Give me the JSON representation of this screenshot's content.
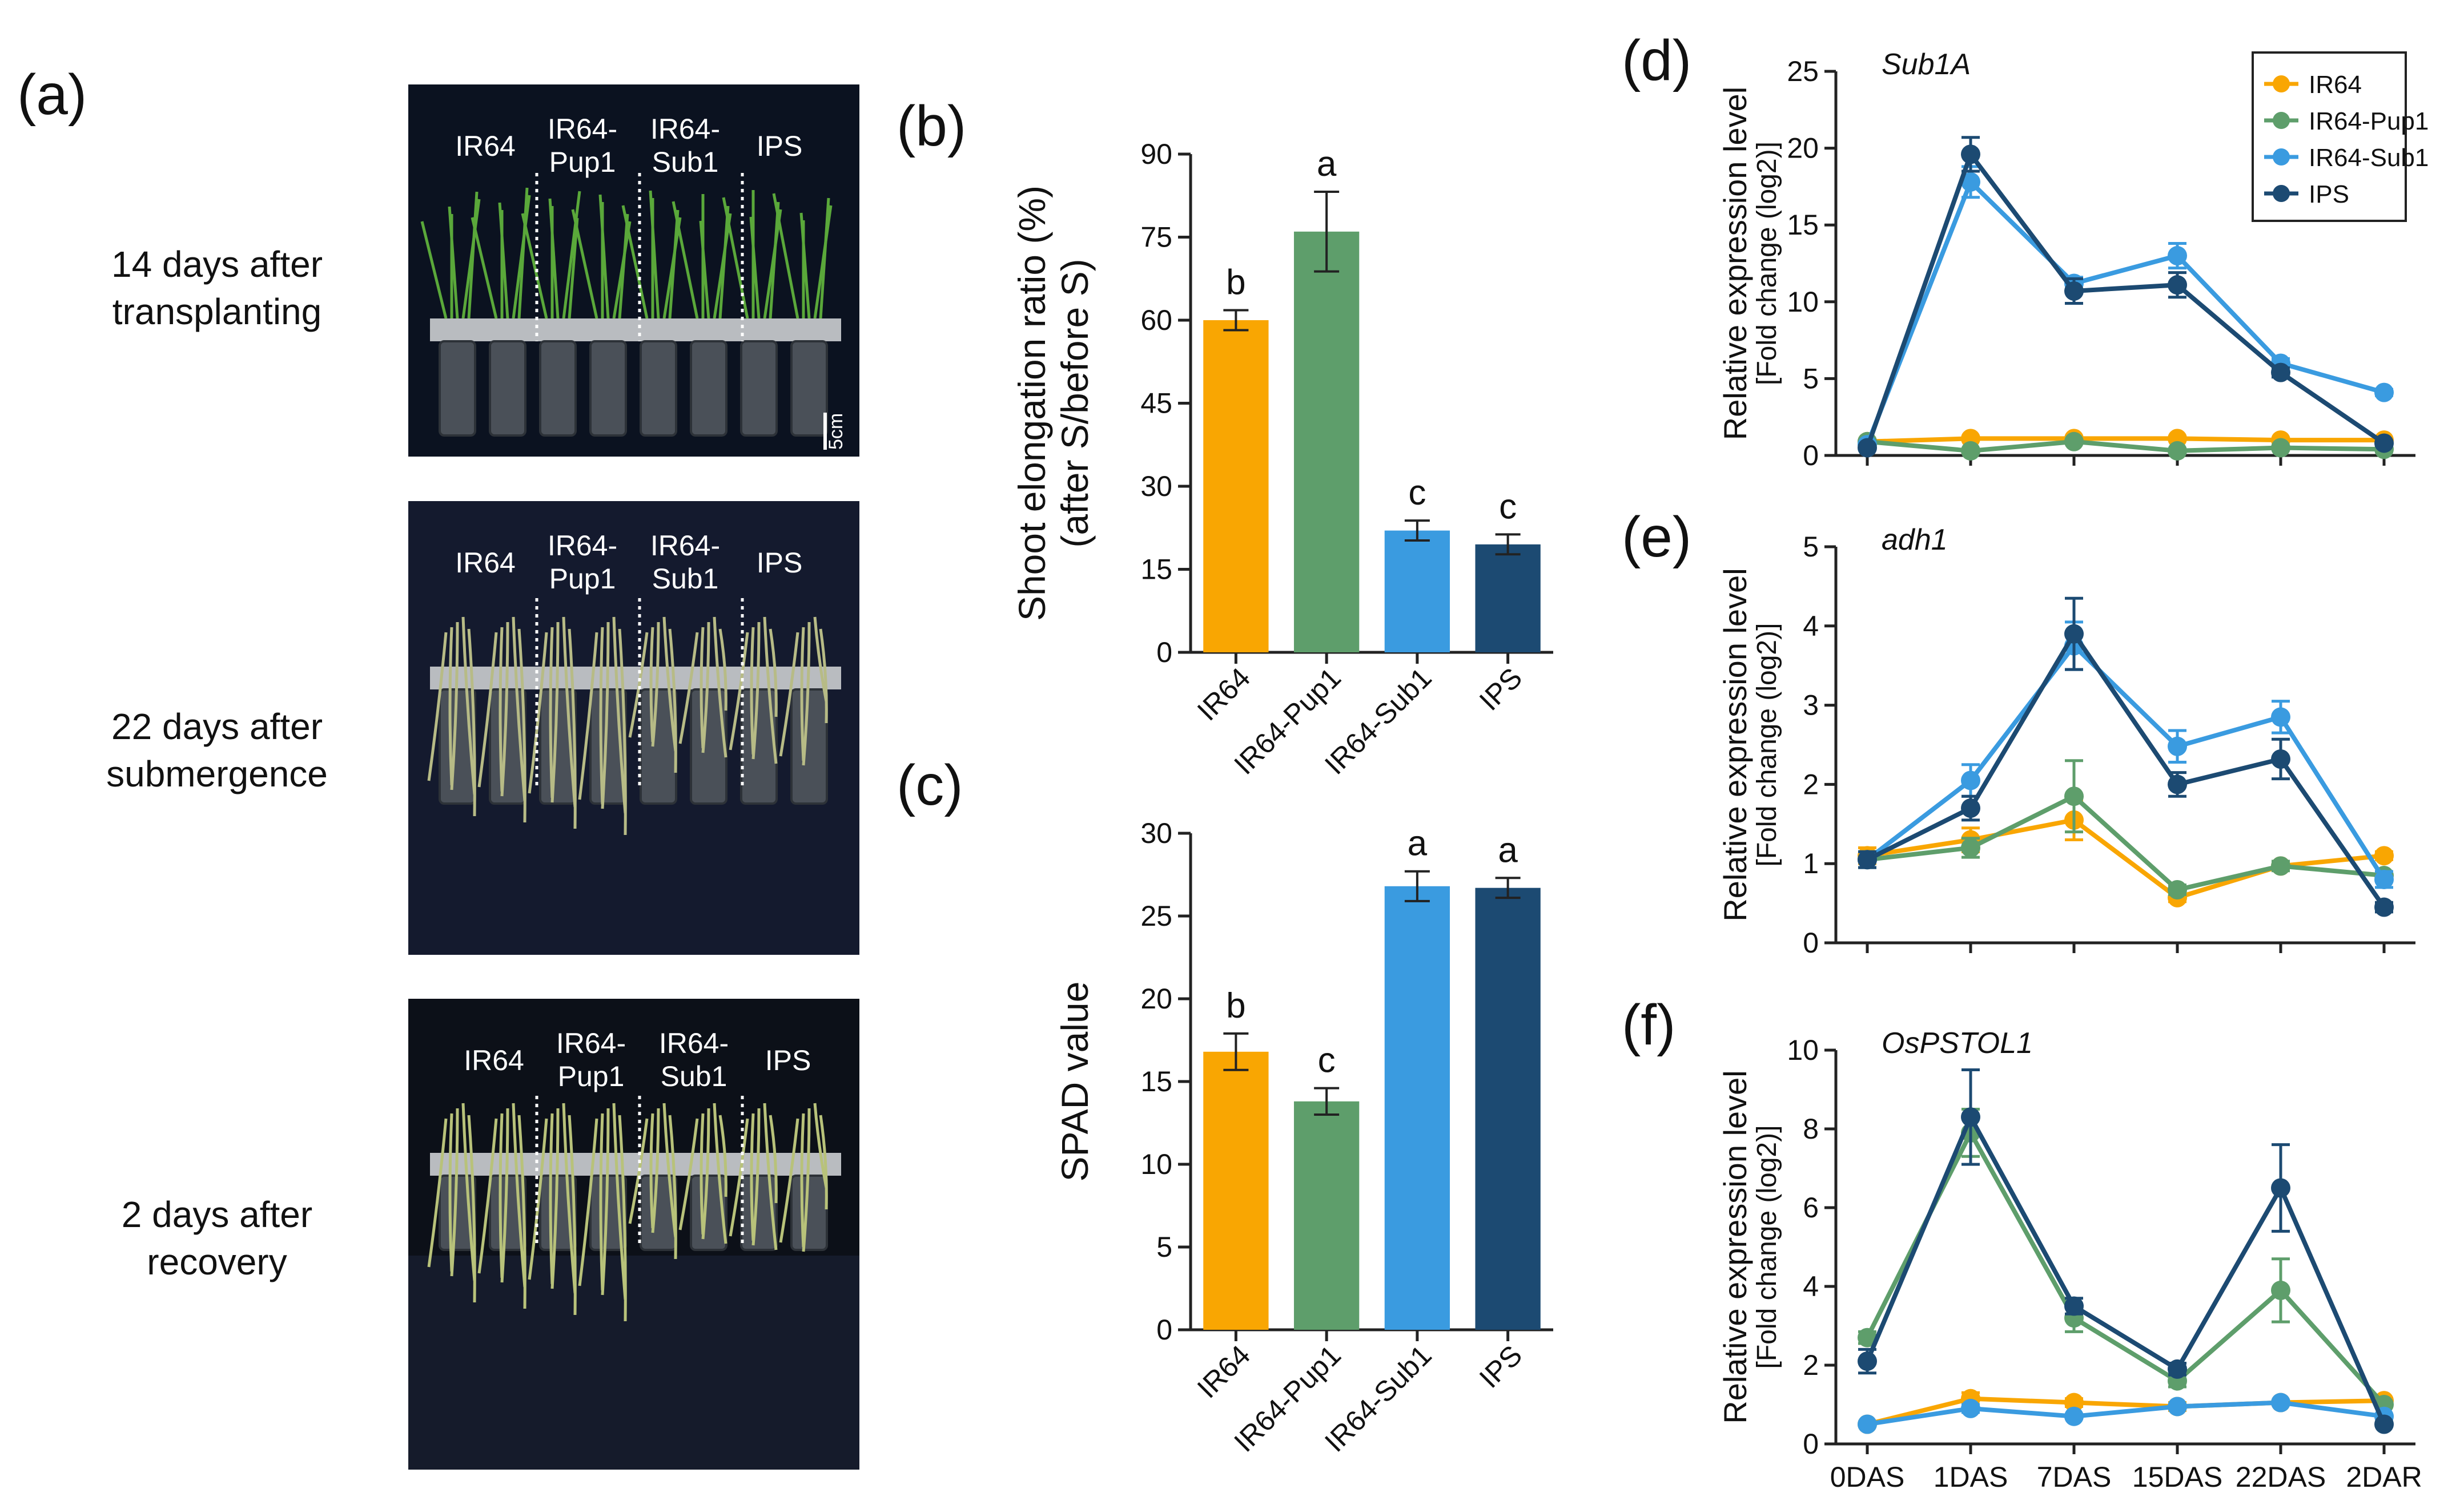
{
  "panels": {
    "a": {
      "label": "(a)",
      "rows": [
        {
          "caption_lines": [
            "14 days after",
            "transplanting"
          ],
          "cultivars": [
            "IR64",
            "IR64-\nPup1",
            "IR64-\nSub1",
            "IPS"
          ]
        },
        {
          "caption_lines": [
            "22 days after",
            "submergence"
          ],
          "cultivars": [
            "IR64",
            "IR64-\nPup1",
            "IR64-\nSub1",
            "IPS"
          ]
        },
        {
          "caption_lines": [
            "2 days after",
            "recovery"
          ],
          "cultivars": [
            "IR64",
            "IR64-\nPup1",
            "IR64-\nSub1",
            "IPS"
          ]
        }
      ],
      "scale_bar": "5cm"
    },
    "b": {
      "label": "(b)"
    },
    "c": {
      "label": "(c)"
    },
    "d": {
      "label": "(d)"
    },
    "e": {
      "label": "(e)"
    },
    "f": {
      "label": "(f)"
    }
  },
  "colors": {
    "IR64": "#F9A602",
    "IR64-Pup1": "#5E9E6B",
    "IR64-Sub1": "#3A9BE0",
    "IPS": "#1C4A72"
  },
  "chart_data": [
    {
      "id": "b",
      "type": "bar",
      "categories": [
        "IR64",
        "IR64-Pup1",
        "IR64-Sub1",
        "IPS"
      ],
      "values": [
        60,
        76,
        22,
        19.5
      ],
      "errors": [
        1.8,
        7.2,
        1.8,
        1.8
      ],
      "significance": [
        "b",
        "a",
        "c",
        "c"
      ],
      "ylabel_lines": [
        "Shoot elongation ratio (%)",
        "(after S/before S)"
      ],
      "ylim": [
        0,
        90
      ],
      "yticks": [
        0,
        15,
        30,
        45,
        60,
        75,
        90
      ]
    },
    {
      "id": "c",
      "type": "bar",
      "categories": [
        "IR64",
        "IR64-Pup1",
        "IR64-Sub1",
        "IPS"
      ],
      "values": [
        16.8,
        13.8,
        26.8,
        26.7
      ],
      "errors": [
        1.1,
        0.8,
        0.9,
        0.6
      ],
      "significance": [
        "b",
        "c",
        "a",
        "a"
      ],
      "ylabel_lines": [
        "SPAD value"
      ],
      "ylim": [
        0,
        30
      ],
      "yticks": [
        0,
        5,
        10,
        15,
        20,
        25,
        30
      ]
    },
    {
      "id": "d",
      "type": "line",
      "gene": "Sub1A",
      "x": [
        "0DAS",
        "1DAS",
        "7DAS",
        "15DAS",
        "22DAS",
        "2DAR"
      ],
      "ylim": [
        0,
        25
      ],
      "yticks": [
        0,
        5,
        10,
        15,
        20,
        25
      ],
      "ylabel": "Relative expression level",
      "ylabel_sub": "[Fold change (log2)]",
      "legend": [
        "IR64",
        "IR64-Pup1",
        "IR64-Sub1",
        "IPS"
      ],
      "series": [
        {
          "name": "IR64",
          "values": [
            0.9,
            1.1,
            1.1,
            1.1,
            1.0,
            1.0
          ],
          "errors": [
            0.1,
            0.1,
            0.1,
            0.1,
            0.1,
            0.1
          ]
        },
        {
          "name": "IR64-Pup1",
          "values": [
            0.9,
            0.3,
            0.9,
            0.3,
            0.5,
            0.4
          ],
          "errors": [
            0.1,
            0.1,
            0.1,
            0.1,
            0.1,
            0.1
          ]
        },
        {
          "name": "IR64-Sub1",
          "values": [
            0.7,
            17.8,
            11.2,
            13.0,
            6.0,
            4.1
          ],
          "errors": [
            0.1,
            1.0,
            0.4,
            0.8,
            0.3,
            0.2
          ]
        },
        {
          "name": "IPS",
          "values": [
            0.5,
            19.6,
            10.7,
            11.1,
            5.4,
            0.8
          ],
          "errors": [
            0.1,
            1.1,
            0.8,
            0.8,
            0.3,
            0.1
          ]
        }
      ]
    },
    {
      "id": "e",
      "type": "line",
      "gene": "adh1",
      "x": [
        "0DAS",
        "1DAS",
        "7DAS",
        "15DAS",
        "22DAS",
        "2DAR"
      ],
      "ylim": [
        0,
        5
      ],
      "yticks": [
        0,
        1,
        2,
        3,
        4,
        5
      ],
      "ylabel": "Relative expression level",
      "ylabel_sub": "[Fold change (log2)]",
      "series": [
        {
          "name": "IR64",
          "values": [
            1.1,
            1.3,
            1.55,
            0.57,
            0.97,
            1.1
          ],
          "errors": [
            0.1,
            0.15,
            0.25,
            0.05,
            0.05,
            0.05
          ]
        },
        {
          "name": "IR64-Pup1",
          "values": [
            1.05,
            1.2,
            1.85,
            0.67,
            0.97,
            0.85
          ],
          "errors": [
            0.1,
            0.12,
            0.45,
            0.06,
            0.06,
            0.05
          ]
        },
        {
          "name": "IR64-Sub1",
          "values": [
            1.05,
            2.05,
            3.75,
            2.48,
            2.85,
            0.8
          ],
          "errors": [
            0.1,
            0.2,
            0.3,
            0.2,
            0.2,
            0.1
          ]
        },
        {
          "name": "IPS",
          "values": [
            1.05,
            1.7,
            3.9,
            2.0,
            2.32,
            0.45
          ],
          "errors": [
            0.1,
            0.15,
            0.45,
            0.15,
            0.25,
            0.06
          ]
        }
      ]
    },
    {
      "id": "f",
      "type": "line",
      "gene": "OsPSTOL1",
      "x": [
        "0DAS",
        "1DAS",
        "7DAS",
        "15DAS",
        "22DAS",
        "2DAR"
      ],
      "ylim": [
        0,
        10
      ],
      "yticks": [
        0,
        2,
        4,
        6,
        8,
        10
      ],
      "ylabel": "Relative expression level",
      "ylabel_sub": "[Fold change (log2)]",
      "series": [
        {
          "name": "IR64",
          "values": [
            0.5,
            1.15,
            1.05,
            0.95,
            1.05,
            1.1
          ],
          "errors": [
            0.05,
            0.15,
            0.1,
            0.1,
            0.05,
            0.05
          ]
        },
        {
          "name": "IR64-Pup1",
          "values": [
            2.7,
            7.9,
            3.2,
            1.6,
            3.9,
            1.0
          ],
          "errors": [
            0.15,
            0.6,
            0.35,
            0.15,
            0.8,
            0.05
          ]
        },
        {
          "name": "IR64-Sub1",
          "values": [
            0.5,
            0.9,
            0.7,
            0.95,
            1.05,
            0.7
          ],
          "errors": [
            0.05,
            0.1,
            0.05,
            0.05,
            0.05,
            0.05
          ]
        },
        {
          "name": "IPS",
          "values": [
            2.1,
            8.3,
            3.5,
            1.9,
            6.5,
            0.5
          ],
          "errors": [
            0.3,
            1.2,
            0.2,
            0.15,
            1.1,
            0.05
          ]
        }
      ]
    }
  ]
}
